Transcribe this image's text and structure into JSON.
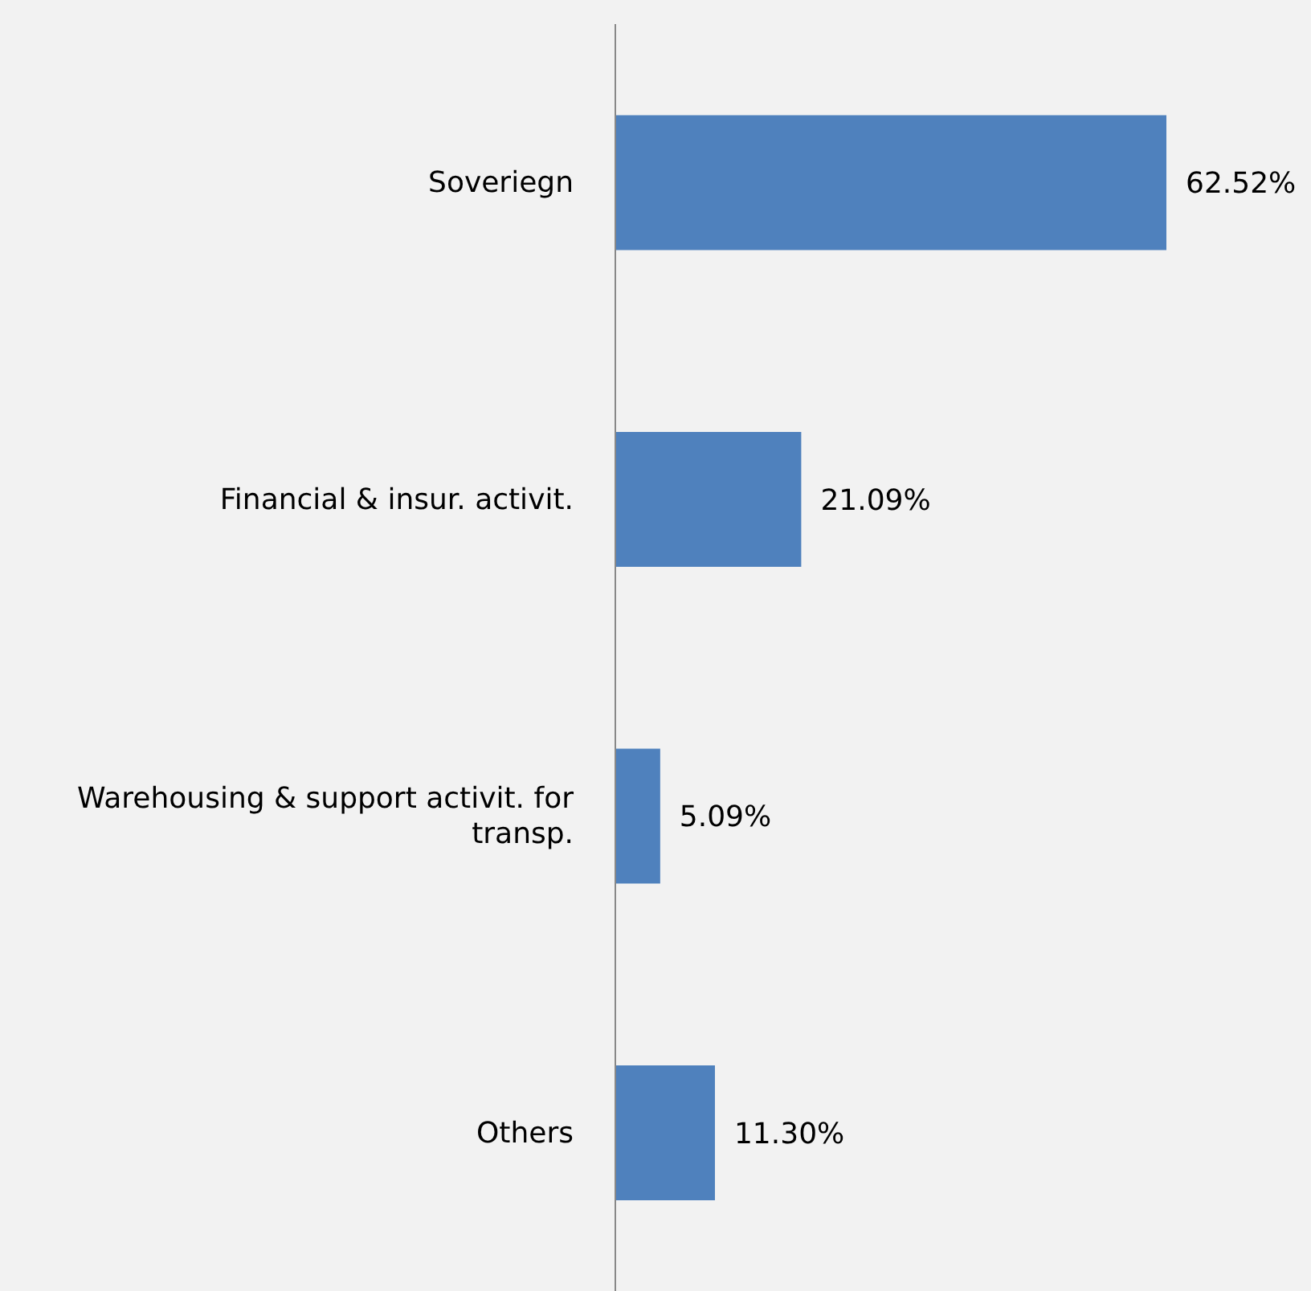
{
  "chart_data": {
    "type": "bar",
    "orientation": "horizontal",
    "categories": [
      "Soveriegn",
      "Financial & insur. activit.",
      "Warehousing & support activit. for transp.",
      "Others"
    ],
    "values": [
      62.52,
      21.09,
      5.09,
      11.3
    ],
    "value_labels": [
      "62.52%",
      "21.09%",
      "5.09%",
      "11.30%"
    ],
    "color": "#4f81bd",
    "grid": false,
    "legend": false
  }
}
